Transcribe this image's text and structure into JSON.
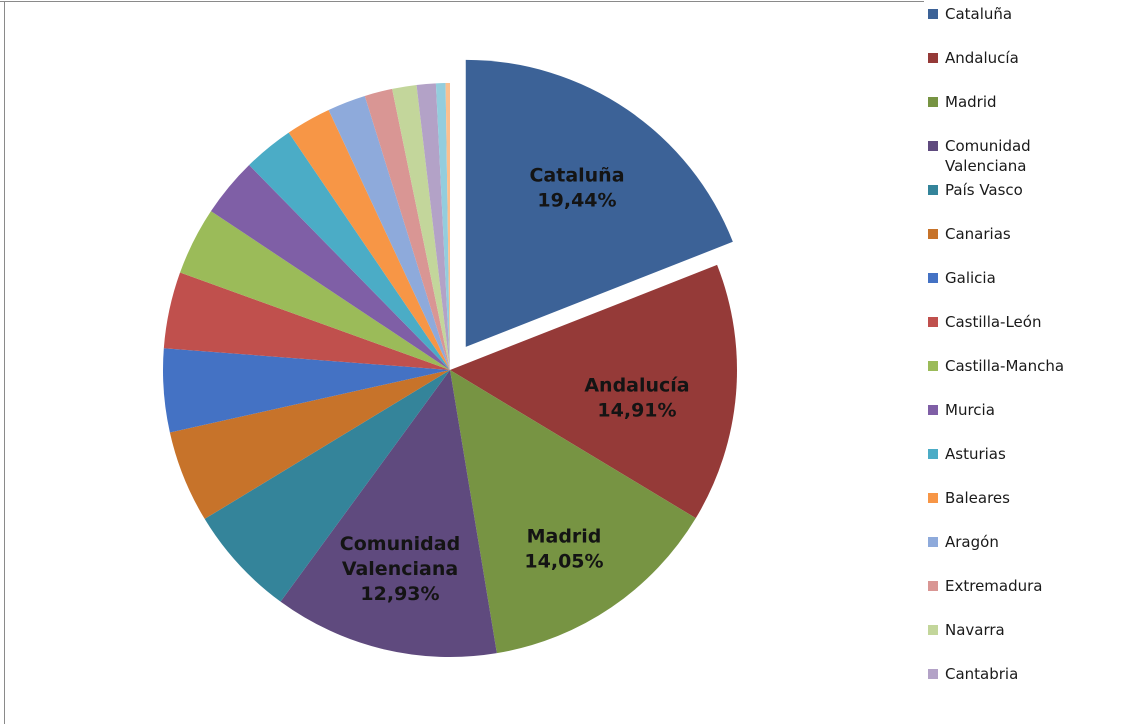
{
  "chart_data": {
    "type": "pie",
    "title": "",
    "legend_position": "right",
    "exploded": [
      "Cataluña"
    ],
    "slices": [
      {
        "name": "Cataluña",
        "value": 19.44,
        "color": "#3c6297",
        "label_lines": [
          "Cataluña",
          "19,44%"
        ]
      },
      {
        "name": "Andalucía",
        "value": 14.91,
        "color": "#953a38",
        "label_lines": [
          "Andalucía",
          "14,91%"
        ]
      },
      {
        "name": "Madrid",
        "value": 14.05,
        "color": "#779443",
        "label_lines": [
          "Madrid",
          "14,05%"
        ]
      },
      {
        "name": "Comunidad Valenciana",
        "value": 12.93,
        "color": "#5f4a7e",
        "label_lines": [
          "Comunidad",
          "Valenciana",
          "12,93%"
        ]
      },
      {
        "name": "País Vasco",
        "value": 6.4,
        "color": "#34849a",
        "label_lines": []
      },
      {
        "name": "Canarias",
        "value": 5.3,
        "color": "#c7732a",
        "label_lines": []
      },
      {
        "name": "Galicia",
        "value": 4.8,
        "color": "#4472c4",
        "label_lines": []
      },
      {
        "name": "Castilla-León",
        "value": 4.4,
        "color": "#c0504d",
        "label_lines": []
      },
      {
        "name": "Castilla-Mancha",
        "value": 3.9,
        "color": "#9bbb59",
        "label_lines": []
      },
      {
        "name": "Murcia",
        "value": 3.4,
        "color": "#7f5fa6",
        "label_lines": []
      },
      {
        "name": "Asturias",
        "value": 2.9,
        "color": "#4bacc6",
        "label_lines": []
      },
      {
        "name": "Baleares",
        "value": 2.6,
        "color": "#f79646",
        "label_lines": []
      },
      {
        "name": "Aragón",
        "value": 2.2,
        "color": "#8eaadb",
        "label_lines": []
      },
      {
        "name": "Extremadura",
        "value": 1.6,
        "color": "#d99694",
        "label_lines": []
      },
      {
        "name": "Navarra",
        "value": 1.4,
        "color": "#c3d69b",
        "label_lines": []
      },
      {
        "name": "Cantabria",
        "value": 1.1,
        "color": "#b3a2c7",
        "label_lines": []
      },
      {
        "name": "",
        "value": 0.55,
        "color": "#93cddd",
        "label_lines": []
      },
      {
        "name": "",
        "value": 0.25,
        "color": "#fac090",
        "label_lines": []
      }
    ]
  },
  "legend": [
    {
      "label": "Cataluña",
      "color": "#3c6297"
    },
    {
      "label": "Andalucía",
      "color": "#953a38"
    },
    {
      "label": "Madrid",
      "color": "#779443"
    },
    {
      "label": "Comunidad\nValenciana",
      "color": "#5f4a7e"
    },
    {
      "label": "País Vasco",
      "color": "#34849a"
    },
    {
      "label": "Canarias",
      "color": "#c7732a"
    },
    {
      "label": "Galicia",
      "color": "#4472c4"
    },
    {
      "label": "Castilla-León",
      "color": "#c0504d"
    },
    {
      "label": "Castilla-Mancha",
      "color": "#9bbb59"
    },
    {
      "label": "Murcia",
      "color": "#7f5fa6"
    },
    {
      "label": "Asturias",
      "color": "#4bacc6"
    },
    {
      "label": "Baleares",
      "color": "#f79646"
    },
    {
      "label": "Aragón",
      "color": "#8eaadb"
    },
    {
      "label": "Extremadura",
      "color": "#d99694"
    },
    {
      "label": "Navarra",
      "color": "#c3d69b"
    },
    {
      "label": "Cantabria",
      "color": "#b3a2c7"
    }
  ]
}
